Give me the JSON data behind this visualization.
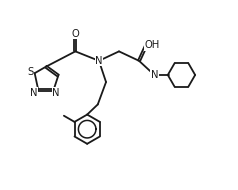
{
  "bg_color": "#ffffff",
  "line_color": "#1a1a1a",
  "line_width": 1.3,
  "font_size": 7.2,
  "figsize": [
    2.38,
    1.9
  ],
  "dpi": 100,
  "xlim": [
    0,
    10
  ],
  "ylim": [
    0,
    8
  ]
}
